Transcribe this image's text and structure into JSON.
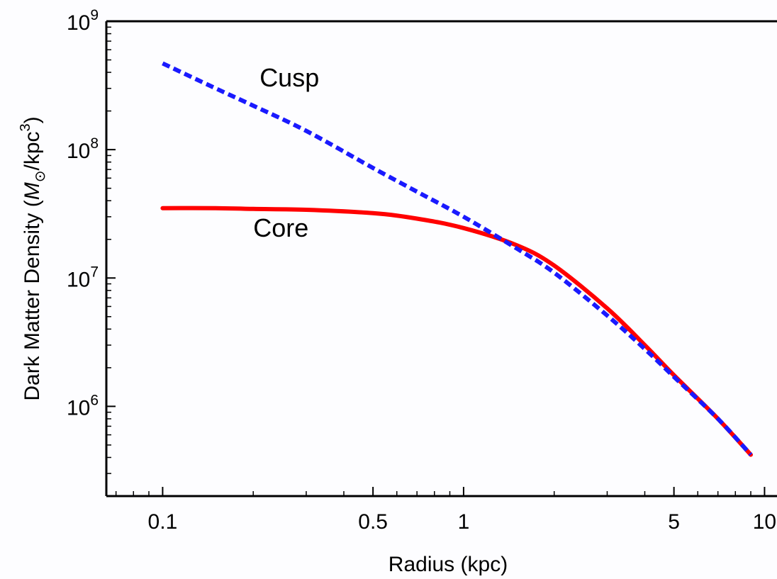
{
  "chart_data": {
    "type": "line",
    "xlabel": "Radius (kpc)",
    "ylabel_parts": {
      "pre": "Dark Matter Density (",
      "mass_symbol": "M",
      "sun_subscript": "⊙",
      "mid": "/kpc",
      "cube": "3",
      "post": ")"
    },
    "x_scale": "log",
    "y_scale": "log",
    "xlim": [
      0.065,
      11
    ],
    "ylim": [
      200000,
      1000000000
    ],
    "x_ticks": [
      {
        "value": 0.1,
        "label": "0.1"
      },
      {
        "value": 0.5,
        "label": "0.5"
      },
      {
        "value": 1,
        "label": "1"
      },
      {
        "value": 5,
        "label": "5"
      },
      {
        "value": 10,
        "label": "10"
      }
    ],
    "y_ticks": [
      {
        "value": 1000000,
        "base": "10",
        "exp": "6"
      },
      {
        "value": 10000000,
        "base": "10",
        "exp": "7"
      },
      {
        "value": 100000000,
        "base": "10",
        "exp": "8"
      },
      {
        "value": 1000000000,
        "base": "10",
        "exp": "9"
      }
    ],
    "grid": false,
    "legend": "none",
    "series": [
      {
        "name": "Cusp",
        "color": "#1a1aff",
        "style": "dashed",
        "x": [
          0.1,
          0.15,
          0.2,
          0.3,
          0.5,
          0.7,
          1.0,
          1.5,
          2.0,
          3.0,
          4.0,
          5.0,
          7.0,
          9.0
        ],
        "y": [
          470000000,
          300000000,
          220000000,
          140000000,
          72000000,
          47000000,
          30000000,
          17000000,
          11000000,
          5100000,
          2800000,
          1700000,
          800000,
          420000
        ]
      },
      {
        "name": "Core",
        "color": "#ff0000",
        "style": "solid",
        "x": [
          0.1,
          0.15,
          0.2,
          0.3,
          0.5,
          0.7,
          1.0,
          1.5,
          2.0,
          3.0,
          4.0,
          5.0,
          7.0,
          9.0
        ],
        "y": [
          35000000,
          35000000,
          34500000,
          34000000,
          32000000,
          29000000,
          24500000,
          18000000,
          12500000,
          5800000,
          3000000,
          1750000,
          800000,
          420000
        ]
      }
    ],
    "annotations": [
      {
        "text": "Cusp",
        "x": 0.21,
        "y": 310000000
      },
      {
        "text": "Core",
        "x": 0.2,
        "y": 21000000
      }
    ]
  }
}
